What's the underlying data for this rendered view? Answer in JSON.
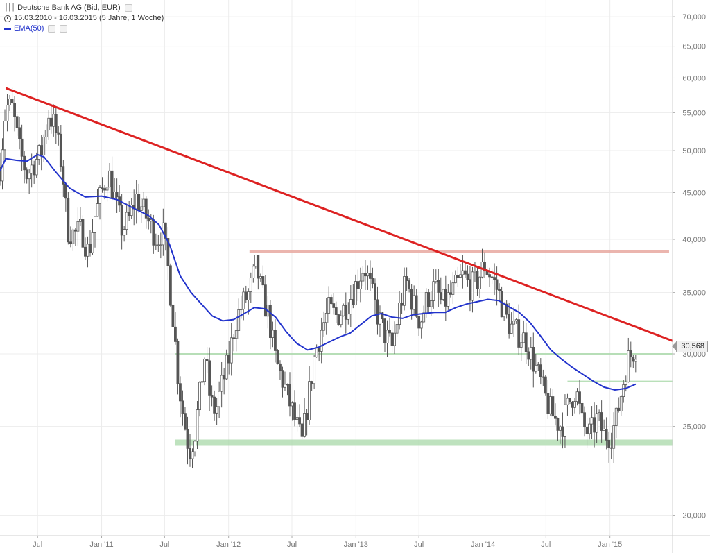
{
  "legend": {
    "title": "Deutsche Bank AG (Bid, EUR)",
    "period": "15.03.2010 - 16.03.2015 (5 Jahre, 1 Woche)",
    "indicator": "EMA(50)",
    "title_icon": "ohlc-bars-icon",
    "period_icon": "clock-icon"
  },
  "last_price_label": "30,568",
  "colors": {
    "background": "#ffffff",
    "grid": "#ececec",
    "candle": "#555555",
    "ema": "#2233cc",
    "trendline": "#dd2222",
    "resistance": "#e8a8a0",
    "support": "#a8d8a8",
    "axis_text": "#777777"
  },
  "chart_data": {
    "type": "candlestick",
    "y_scale": "log",
    "ylim": [
      19000,
      73000
    ],
    "y_ticks": [
      {
        "value": 20000,
        "label": "20,000"
      },
      {
        "value": 25000,
        "label": "25,000"
      },
      {
        "value": 30000,
        "label": "30,000"
      },
      {
        "value": 35000,
        "label": "35,000"
      },
      {
        "value": 40000,
        "label": "40,000"
      },
      {
        "value": 45000,
        "label": "45,000"
      },
      {
        "value": 50000,
        "label": "50,000"
      },
      {
        "value": 55000,
        "label": "55,000"
      },
      {
        "value": 60000,
        "label": "60,000"
      },
      {
        "value": 65000,
        "label": "65,000"
      },
      {
        "value": 70000,
        "label": "70,000"
      }
    ],
    "x_range": [
      "2010-03-15",
      "2015-06-30"
    ],
    "x_ticks": [
      {
        "date": "2010-07-01",
        "label": "Jul"
      },
      {
        "date": "2011-01-01",
        "label": "Jan '11"
      },
      {
        "date": "2011-07-01",
        "label": "Jul"
      },
      {
        "date": "2012-01-01",
        "label": "Jan '12"
      },
      {
        "date": "2012-07-01",
        "label": "Jul"
      },
      {
        "date": "2013-01-01",
        "label": "Jan '13"
      },
      {
        "date": "2013-07-01",
        "label": "Jul"
      },
      {
        "date": "2014-01-01",
        "label": "Jan '14"
      },
      {
        "date": "2014-07-01",
        "label": "Jul"
      },
      {
        "date": "2015-01-01",
        "label": "Jan '15"
      }
    ],
    "price_path": [
      [
        "2010-03-15",
        48000
      ],
      [
        "2010-04-01",
        56000
      ],
      [
        "2010-04-20",
        55500
      ],
      [
        "2010-05-10",
        50000
      ],
      [
        "2010-06-01",
        47000
      ],
      [
        "2010-06-20",
        48500
      ],
      [
        "2010-07-10",
        49500
      ],
      [
        "2010-08-01",
        55000
      ],
      [
        "2010-08-20",
        53000
      ],
      [
        "2010-09-10",
        48000
      ],
      [
        "2010-09-25",
        41000
      ],
      [
        "2010-10-15",
        40500
      ],
      [
        "2010-11-05",
        41000
      ],
      [
        "2010-11-25",
        38500
      ],
      [
        "2010-12-10",
        42000
      ],
      [
        "2011-01-01",
        45000
      ],
      [
        "2011-01-20",
        47500
      ],
      [
        "2011-02-10",
        44000
      ],
      [
        "2011-03-01",
        41000
      ],
      [
        "2011-03-20",
        42000
      ],
      [
        "2011-04-10",
        44500
      ],
      [
        "2011-05-01",
        43000
      ],
      [
        "2011-05-20",
        41500
      ],
      [
        "2011-06-10",
        40000
      ],
      [
        "2011-06-25",
        41000
      ],
      [
        "2011-07-10",
        37500
      ],
      [
        "2011-07-25",
        33000
      ],
      [
        "2011-08-10",
        28000
      ],
      [
        "2011-08-25",
        25500
      ],
      [
        "2011-09-10",
        23500
      ],
      [
        "2011-09-25",
        24500
      ],
      [
        "2011-10-10",
        27000
      ],
      [
        "2011-10-25",
        30000
      ],
      [
        "2011-11-10",
        26500
      ],
      [
        "2011-11-25",
        26000
      ],
      [
        "2011-12-10",
        27500
      ],
      [
        "2012-01-01",
        29500
      ],
      [
        "2012-01-20",
        32500
      ],
      [
        "2012-02-10",
        34000
      ],
      [
        "2012-03-01",
        35000
      ],
      [
        "2012-03-20",
        37500
      ],
      [
        "2012-04-05",
        35000
      ],
      [
        "2012-04-25",
        33000
      ],
      [
        "2012-05-15",
        29500
      ],
      [
        "2012-06-05",
        28000
      ],
      [
        "2012-06-25",
        26500
      ],
      [
        "2012-07-15",
        25000
      ],
      [
        "2012-07-30",
        24000
      ],
      [
        "2012-08-15",
        26500
      ],
      [
        "2012-09-05",
        30000
      ],
      [
        "2012-09-25",
        32000
      ],
      [
        "2012-10-15",
        33500
      ],
      [
        "2012-11-05",
        33000
      ],
      [
        "2012-11-25",
        33500
      ],
      [
        "2012-12-15",
        34500
      ],
      [
        "2013-01-05",
        36000
      ],
      [
        "2013-01-25",
        37500
      ],
      [
        "2013-02-15",
        35000
      ],
      [
        "2013-03-05",
        33000
      ],
      [
        "2013-03-25",
        31500
      ],
      [
        "2013-04-15",
        30500
      ],
      [
        "2013-05-05",
        33500
      ],
      [
        "2013-05-25",
        36000
      ],
      [
        "2013-06-15",
        34000
      ],
      [
        "2013-07-05",
        32500
      ],
      [
        "2013-07-25",
        34500
      ],
      [
        "2013-08-15",
        35500
      ],
      [
        "2013-09-05",
        34000
      ],
      [
        "2013-09-25",
        34500
      ],
      [
        "2013-10-15",
        35500
      ],
      [
        "2013-11-05",
        36500
      ],
      [
        "2013-11-25",
        35500
      ],
      [
        "2013-12-15",
        36000
      ],
      [
        "2014-01-05",
        37500
      ],
      [
        "2014-01-25",
        36500
      ],
      [
        "2014-02-15",
        35000
      ],
      [
        "2014-03-05",
        33000
      ],
      [
        "2014-03-25",
        32000
      ],
      [
        "2014-04-15",
        31500
      ],
      [
        "2014-05-05",
        31000
      ],
      [
        "2014-05-25",
        29500
      ],
      [
        "2014-06-15",
        28000
      ],
      [
        "2014-07-05",
        26500
      ],
      [
        "2014-07-25",
        25500
      ],
      [
        "2014-08-15",
        25000
      ],
      [
        "2014-09-05",
        26500
      ],
      [
        "2014-09-25",
        27500
      ],
      [
        "2014-10-15",
        25000
      ],
      [
        "2014-11-05",
        24500
      ],
      [
        "2014-11-25",
        25500
      ],
      [
        "2014-12-15",
        24500
      ],
      [
        "2015-01-05",
        24500
      ],
      [
        "2015-01-20",
        25500
      ],
      [
        "2015-02-05",
        27500
      ],
      [
        "2015-02-20",
        29500
      ],
      [
        "2015-03-05",
        30000
      ],
      [
        "2015-03-16",
        30568
      ]
    ],
    "ema": [
      [
        "2010-03-15",
        47500
      ],
      [
        "2010-04-01",
        49000
      ],
      [
        "2010-05-01",
        48800
      ],
      [
        "2010-06-01",
        48700
      ],
      [
        "2010-07-01",
        49500
      ],
      [
        "2010-07-20",
        49200
      ],
      [
        "2010-08-20",
        47500
      ],
      [
        "2010-10-01",
        45500
      ],
      [
        "2010-11-15",
        44500
      ],
      [
        "2011-01-01",
        44600
      ],
      [
        "2011-02-15",
        44200
      ],
      [
        "2011-04-01",
        43300
      ],
      [
        "2011-05-15",
        42500
      ],
      [
        "2011-06-15",
        41500
      ],
      [
        "2011-07-15",
        39500
      ],
      [
        "2011-08-15",
        36500
      ],
      [
        "2011-09-15",
        35000
      ],
      [
        "2011-10-15",
        34000
      ],
      [
        "2011-11-15",
        33000
      ],
      [
        "2011-12-15",
        32600
      ],
      [
        "2012-01-15",
        32700
      ],
      [
        "2012-02-15",
        33200
      ],
      [
        "2012-03-15",
        33700
      ],
      [
        "2012-04-15",
        33600
      ],
      [
        "2012-05-15",
        32900
      ],
      [
        "2012-06-15",
        31700
      ],
      [
        "2012-07-15",
        30800
      ],
      [
        "2012-08-15",
        30300
      ],
      [
        "2012-09-15",
        30500
      ],
      [
        "2012-10-15",
        30900
      ],
      [
        "2012-11-15",
        31300
      ],
      [
        "2012-12-15",
        31600
      ],
      [
        "2013-01-15",
        32300
      ],
      [
        "2013-02-15",
        33000
      ],
      [
        "2013-03-15",
        33200
      ],
      [
        "2013-04-15",
        32900
      ],
      [
        "2013-05-15",
        32800
      ],
      [
        "2013-06-15",
        33100
      ],
      [
        "2013-07-15",
        33200
      ],
      [
        "2013-08-15",
        33300
      ],
      [
        "2013-09-15",
        33300
      ],
      [
        "2013-10-15",
        33700
      ],
      [
        "2013-11-15",
        34000
      ],
      [
        "2013-12-15",
        34200
      ],
      [
        "2014-01-15",
        34400
      ],
      [
        "2014-02-15",
        34300
      ],
      [
        "2014-03-15",
        33800
      ],
      [
        "2014-04-15",
        33300
      ],
      [
        "2014-05-15",
        32500
      ],
      [
        "2014-06-15",
        31400
      ],
      [
        "2014-07-15",
        30300
      ],
      [
        "2014-08-15",
        29600
      ],
      [
        "2014-09-15",
        29000
      ],
      [
        "2014-10-15",
        28500
      ],
      [
        "2014-11-15",
        28000
      ],
      [
        "2014-12-15",
        27600
      ],
      [
        "2015-01-15",
        27400
      ],
      [
        "2015-02-15",
        27500
      ],
      [
        "2015-03-16",
        27800
      ]
    ],
    "trendline": {
      "from": [
        "2010-04-01",
        58500
      ],
      "to": [
        "2015-06-30",
        31000
      ]
    },
    "levels": [
      {
        "name": "resistance",
        "value": 38800,
        "from": "2012-03-01",
        "to": "2015-06-20",
        "weight": "medium"
      },
      {
        "name": "support-upper",
        "value": 30000,
        "from": "2011-08-01",
        "to": "2015-06-30",
        "weight": "thin"
      },
      {
        "name": "support-mid",
        "value": 28000,
        "from": "2014-09-01",
        "to": "2015-06-30",
        "weight": "thin"
      },
      {
        "name": "support-lower",
        "value": 24000,
        "from": "2011-08-01",
        "to": "2015-06-30",
        "weight": "thick"
      }
    ]
  }
}
